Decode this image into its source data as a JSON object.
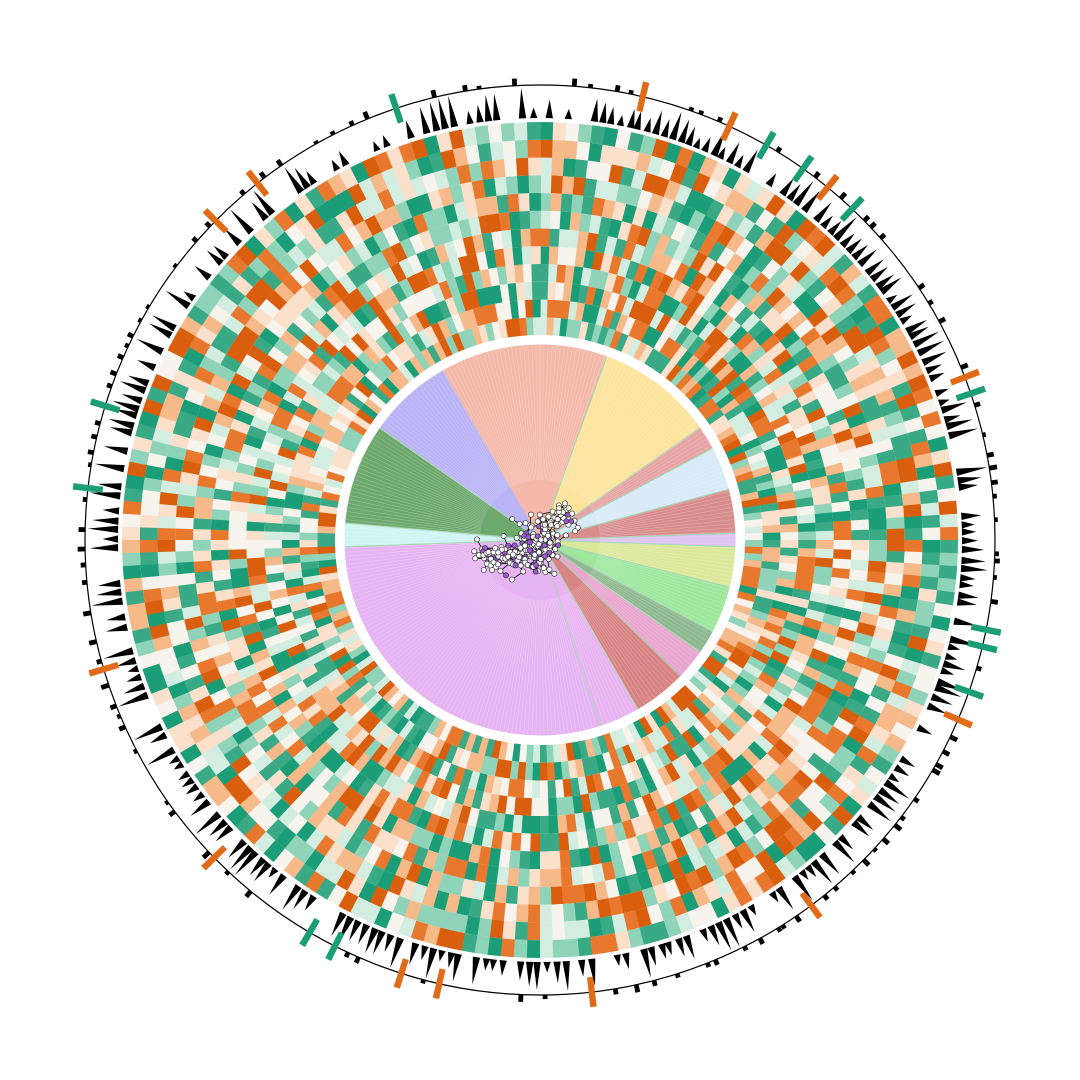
{
  "tree": {
    "clades": [
      {
        "color": "#f4b9aa",
        "start": -30,
        "end": 20
      },
      {
        "color": "#fde49c",
        "start": 20,
        "end": 55
      },
      {
        "color": "#e7a3a3",
        "start": 55,
        "end": 62
      },
      {
        "color": "#d6eaf7",
        "start": 62,
        "end": 75
      },
      {
        "color": "#d98c8c",
        "start": 75,
        "end": 88
      },
      {
        "color": "#dcc4f0",
        "start": 88,
        "end": 92
      },
      {
        "color": "#dbe89a",
        "start": 92,
        "end": 104
      },
      {
        "color": "#9de89d",
        "start": 104,
        "end": 118
      },
      {
        "color": "#8fb88f",
        "start": 118,
        "end": 125
      },
      {
        "color": "#e8a6cf",
        "start": 125,
        "end": 134
      },
      {
        "color": "#d98484",
        "start": 134,
        "end": 150
      },
      {
        "color": "#e9b3f2",
        "start": 150,
        "end": 162
      },
      {
        "color": "#e6b4f3",
        "start": 162,
        "end": 268
      },
      {
        "color": "#cdf5f2",
        "start": 268,
        "end": 275
      },
      {
        "color": "#6da86d",
        "start": 275,
        "end": 305
      },
      {
        "color": "#bab3f6",
        "start": 305,
        "end": 330
      }
    ],
    "heatmap_palette": [
      "#f7f4ee",
      "#fbe0cc",
      "#f5b98a",
      "#e8782e",
      "#d95f0e",
      "#d3ede1",
      "#8fd3b8",
      "#3aaa86",
      "#1b9e77"
    ]
  }
}
